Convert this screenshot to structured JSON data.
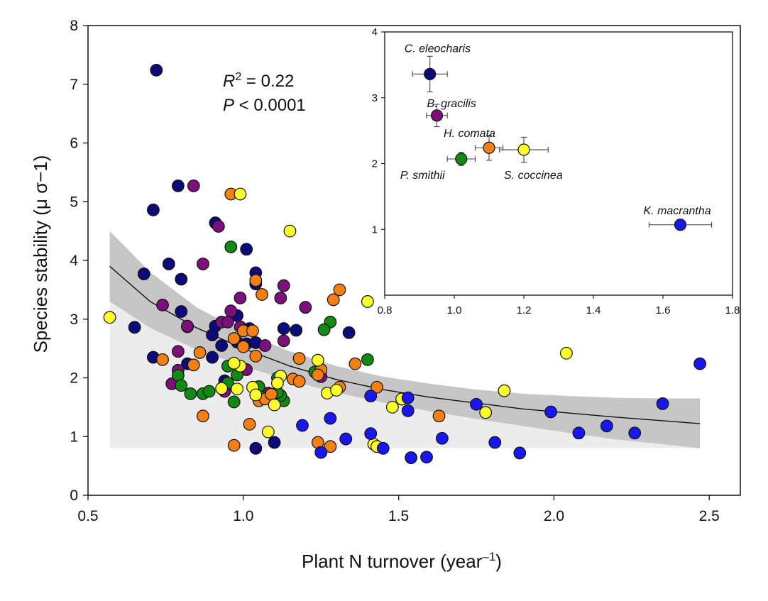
{
  "chart_data": [
    {
      "type": "scatter",
      "xlabel_main": "Plant N turnover (year",
      "xlabel_sup": "–1",
      "xlabel_end": ")",
      "ylabel": "Species stability (μ σ−1)",
      "xlim": [
        0.5,
        2.6
      ],
      "ylim": [
        0,
        8
      ],
      "xticks": [
        "0.5",
        "1.0",
        "1.5",
        "2.0",
        "2.5"
      ],
      "xtick_values": [
        0.5,
        1.0,
        1.5,
        2.0,
        2.5
      ],
      "yticks": [
        "0",
        "1",
        "2",
        "3",
        "4",
        "5",
        "6",
        "7",
        "8"
      ],
      "ytick_values": [
        0,
        1,
        2,
        3,
        4,
        5,
        6,
        7,
        8
      ],
      "stats": {
        "r2_prefix": "R",
        "r2_sup": "2",
        "r2_value": " = 0.22",
        "p_prefix": "P",
        "p_value": " < 0.0001"
      },
      "colors": {
        "navy": "#0b0b7a",
        "purple": "#7d0f7d",
        "green": "#118a11",
        "orange": "#f47f12",
        "yellow": "#ffff2a",
        "blue": "#1717ee"
      },
      "fit": {
        "x_start": 0.57,
        "x_end": 2.47,
        "y": [
          3.9,
          3.3,
          2.85,
          2.5,
          2.2,
          1.97,
          1.8,
          1.67,
          1.57,
          1.47,
          1.4,
          1.33,
          1.27,
          1.22
        ],
        "x": [
          0.57,
          0.7,
          0.85,
          1.0,
          1.15,
          1.3,
          1.45,
          1.6,
          1.75,
          1.9,
          2.05,
          2.2,
          2.35,
          2.47
        ],
        "ci_upper": [
          4.5,
          3.8,
          3.2,
          2.78,
          2.45,
          2.2,
          2.02,
          1.9,
          1.8,
          1.73,
          1.69,
          1.66,
          1.65,
          1.65
        ],
        "ci_lower": [
          3.3,
          2.85,
          2.48,
          2.2,
          1.95,
          1.75,
          1.58,
          1.43,
          1.3,
          1.18,
          1.06,
          0.95,
          0.87,
          0.8
        ]
      },
      "background_band": {
        "x_start": 0.57,
        "x_end": 2.47,
        "upper": [
          3.3,
          2.85,
          2.48,
          2.2,
          1.95,
          1.75,
          1.64,
          1.64,
          1.64,
          1.64,
          1.64,
          1.64,
          1.64,
          1.64
        ],
        "lower": 0.8
      },
      "series": [
        {
          "color": "navy",
          "points": [
            [
              0.72,
              7.24
            ],
            [
              0.79,
              5.27
            ],
            [
              0.71,
              4.86
            ],
            [
              0.76,
              3.94
            ],
            [
              0.68,
              3.77
            ],
            [
              0.8,
              3.68
            ],
            [
              0.8,
              3.13
            ],
            [
              0.65,
              2.86
            ],
            [
              0.82,
              2.87
            ],
            [
              0.71,
              2.35
            ],
            [
              0.82,
              2.24
            ],
            [
              0.9,
              2.73
            ],
            [
              0.91,
              2.88
            ],
            [
              0.93,
              2.55
            ],
            [
              0.91,
              4.64
            ],
            [
              0.98,
              3.06
            ],
            [
              1.01,
              4.19
            ],
            [
              1.04,
              3.79
            ],
            [
              1.04,
              3.6
            ],
            [
              1.02,
              2.84
            ],
            [
              0.98,
              2.61
            ],
            [
              1.01,
              2.58
            ],
            [
              1.04,
              2.6
            ],
            [
              1.13,
              2.84
            ],
            [
              1.17,
              2.81
            ],
            [
              1.34,
              2.77
            ],
            [
              0.9,
              2.35
            ],
            [
              0.94,
              1.95
            ],
            [
              1.04,
              0.8
            ],
            [
              1.1,
              0.9
            ]
          ]
        },
        {
          "color": "purple",
          "points": [
            [
              0.84,
              5.27
            ],
            [
              0.92,
              4.58
            ],
            [
              0.87,
              3.94
            ],
            [
              0.74,
              3.24
            ],
            [
              0.79,
              2.45
            ],
            [
              0.77,
              1.9
            ],
            [
              0.79,
              2.13
            ],
            [
              0.82,
              2.88
            ],
            [
              0.93,
              2.95
            ],
            [
              0.96,
              3.14
            ],
            [
              0.99,
              3.36
            ],
            [
              0.95,
              2.95
            ],
            [
              0.99,
              2.87
            ],
            [
              1.07,
              2.55
            ],
            [
              1.13,
              3.57
            ],
            [
              1.12,
              3.36
            ],
            [
              1.2,
              3.2
            ],
            [
              1.13,
              2.63
            ],
            [
              1.08,
              1.74
            ],
            [
              0.94,
              1.77
            ],
            [
              1.01,
              2.14
            ],
            [
              1.25,
              2.02
            ]
          ]
        },
        {
          "color": "green",
          "points": [
            [
              0.96,
              4.23
            ],
            [
              1.28,
              2.95
            ],
            [
              1.26,
              2.82
            ],
            [
              1.4,
              2.31
            ],
            [
              0.79,
              2.04
            ],
            [
              0.8,
              1.87
            ],
            [
              0.83,
              1.73
            ],
            [
              0.87,
              1.73
            ],
            [
              0.89,
              1.77
            ],
            [
              0.95,
              1.91
            ],
            [
              0.97,
              1.59
            ],
            [
              0.98,
              2.05
            ],
            [
              1.05,
              1.85
            ],
            [
              1.06,
              1.67
            ],
            [
              1.11,
              2.0
            ],
            [
              1.13,
              1.61
            ],
            [
              1.12,
              1.7
            ],
            [
              1.23,
              2.1
            ],
            [
              0.95,
              2.2
            ],
            [
              1.11,
              1.75
            ]
          ]
        },
        {
          "color": "orange",
          "points": [
            [
              0.96,
              5.13
            ],
            [
              1.04,
              3.66
            ],
            [
              1.06,
              3.42
            ],
            [
              1.31,
              3.5
            ],
            [
              1.29,
              3.33
            ],
            [
              1.0,
              2.8
            ],
            [
              1.03,
              2.8
            ],
            [
              0.97,
              2.67
            ],
            [
              1.0,
              2.53
            ],
            [
              1.04,
              2.37
            ],
            [
              0.74,
              2.31
            ],
            [
              0.84,
              2.22
            ],
            [
              0.86,
              2.43
            ],
            [
              0.87,
              1.35
            ],
            [
              1.18,
              2.33
            ],
            [
              1.25,
              2.14
            ],
            [
              1.24,
              2.05
            ],
            [
              1.36,
              2.24
            ],
            [
              1.16,
              1.98
            ],
            [
              1.18,
              1.94
            ],
            [
              1.31,
              1.84
            ],
            [
              1.05,
              1.61
            ],
            [
              1.07,
              1.64
            ],
            [
              1.09,
              1.72
            ],
            [
              1.43,
              1.84
            ],
            [
              1.02,
              1.21
            ],
            [
              0.97,
              0.85
            ],
            [
              1.24,
              0.9
            ],
            [
              1.28,
              0.83
            ],
            [
              1.63,
              1.35
            ]
          ]
        },
        {
          "color": "yellow",
          "points": [
            [
              0.57,
              3.03
            ],
            [
              0.99,
              5.13
            ],
            [
              1.15,
              4.5
            ],
            [
              1.4,
              3.3
            ],
            [
              1.42,
              0.87
            ],
            [
              2.04,
              2.42
            ],
            [
              1.84,
              1.78
            ],
            [
              1.78,
              1.41
            ],
            [
              1.51,
              1.64
            ],
            [
              1.48,
              1.5
            ],
            [
              0.99,
              2.2
            ],
            [
              0.97,
              2.25
            ],
            [
              0.93,
              1.82
            ],
            [
              0.98,
              1.81
            ],
            [
              1.03,
              1.84
            ],
            [
              1.04,
              1.71
            ],
            [
              1.12,
              2.03
            ],
            [
              1.11,
              1.91
            ],
            [
              1.1,
              1.54
            ],
            [
              1.08,
              1.08
            ],
            [
              1.24,
              2.3
            ],
            [
              1.27,
              1.74
            ],
            [
              1.3,
              1.79
            ],
            [
              1.43,
              0.83
            ]
          ]
        },
        {
          "color": "blue",
          "points": [
            [
              2.47,
              2.24
            ],
            [
              2.35,
              1.56
            ],
            [
              2.26,
              1.06
            ],
            [
              2.17,
              1.18
            ],
            [
              2.08,
              1.06
            ],
            [
              1.99,
              1.42
            ],
            [
              1.89,
              0.72
            ],
            [
              1.81,
              0.9
            ],
            [
              1.75,
              1.55
            ],
            [
              1.64,
              0.97
            ],
            [
              1.59,
              0.65
            ],
            [
              1.54,
              0.64
            ],
            [
              1.53,
              1.44
            ],
            [
              1.53,
              1.66
            ],
            [
              1.45,
              0.8
            ],
            [
              1.41,
              1.05
            ],
            [
              1.41,
              1.69
            ],
            [
              1.33,
              0.96
            ],
            [
              1.28,
              1.31
            ],
            [
              1.25,
              0.73
            ],
            [
              1.19,
              1.19
            ]
          ]
        }
      ]
    },
    {
      "type": "scatter",
      "xlim": [
        0.8,
        1.8
      ],
      "ylim": [
        0,
        4
      ],
      "xticks": [
        "0.8",
        "1.0",
        "1.2",
        "1.4",
        "1.6",
        "1.8"
      ],
      "xtick_values": [
        0.8,
        1.0,
        1.2,
        1.4,
        1.6,
        1.8
      ],
      "yticks": [
        "1",
        "2",
        "3",
        "4"
      ],
      "ytick_values": [
        1,
        2,
        3,
        4
      ],
      "points": [
        {
          "label": "C. eleocharis",
          "color": "navy",
          "x": 0.93,
          "y": 3.36,
          "xerr": 0.05,
          "yerr": 0.27
        },
        {
          "label": "B. gracilis",
          "color": "purple",
          "x": 0.95,
          "y": 2.73,
          "xerr": 0.03,
          "yerr": 0.17
        },
        {
          "label": "H. comata",
          "color": "orange",
          "x": 1.1,
          "y": 2.24,
          "xerr": 0.04,
          "yerr": 0.19
        },
        {
          "label": "S. coccinea",
          "color": "yellow",
          "x": 1.2,
          "y": 2.21,
          "xerr": 0.07,
          "yerr": 0.19
        },
        {
          "label": "P. smithii",
          "color": "green",
          "x": 1.02,
          "y": 2.07,
          "xerr": 0.04,
          "yerr": 0.1
        },
        {
          "label": "K. macrantha",
          "color": "blue",
          "x": 1.65,
          "y": 1.07,
          "xerr": 0.09,
          "yerr": 0.08
        }
      ]
    }
  ]
}
